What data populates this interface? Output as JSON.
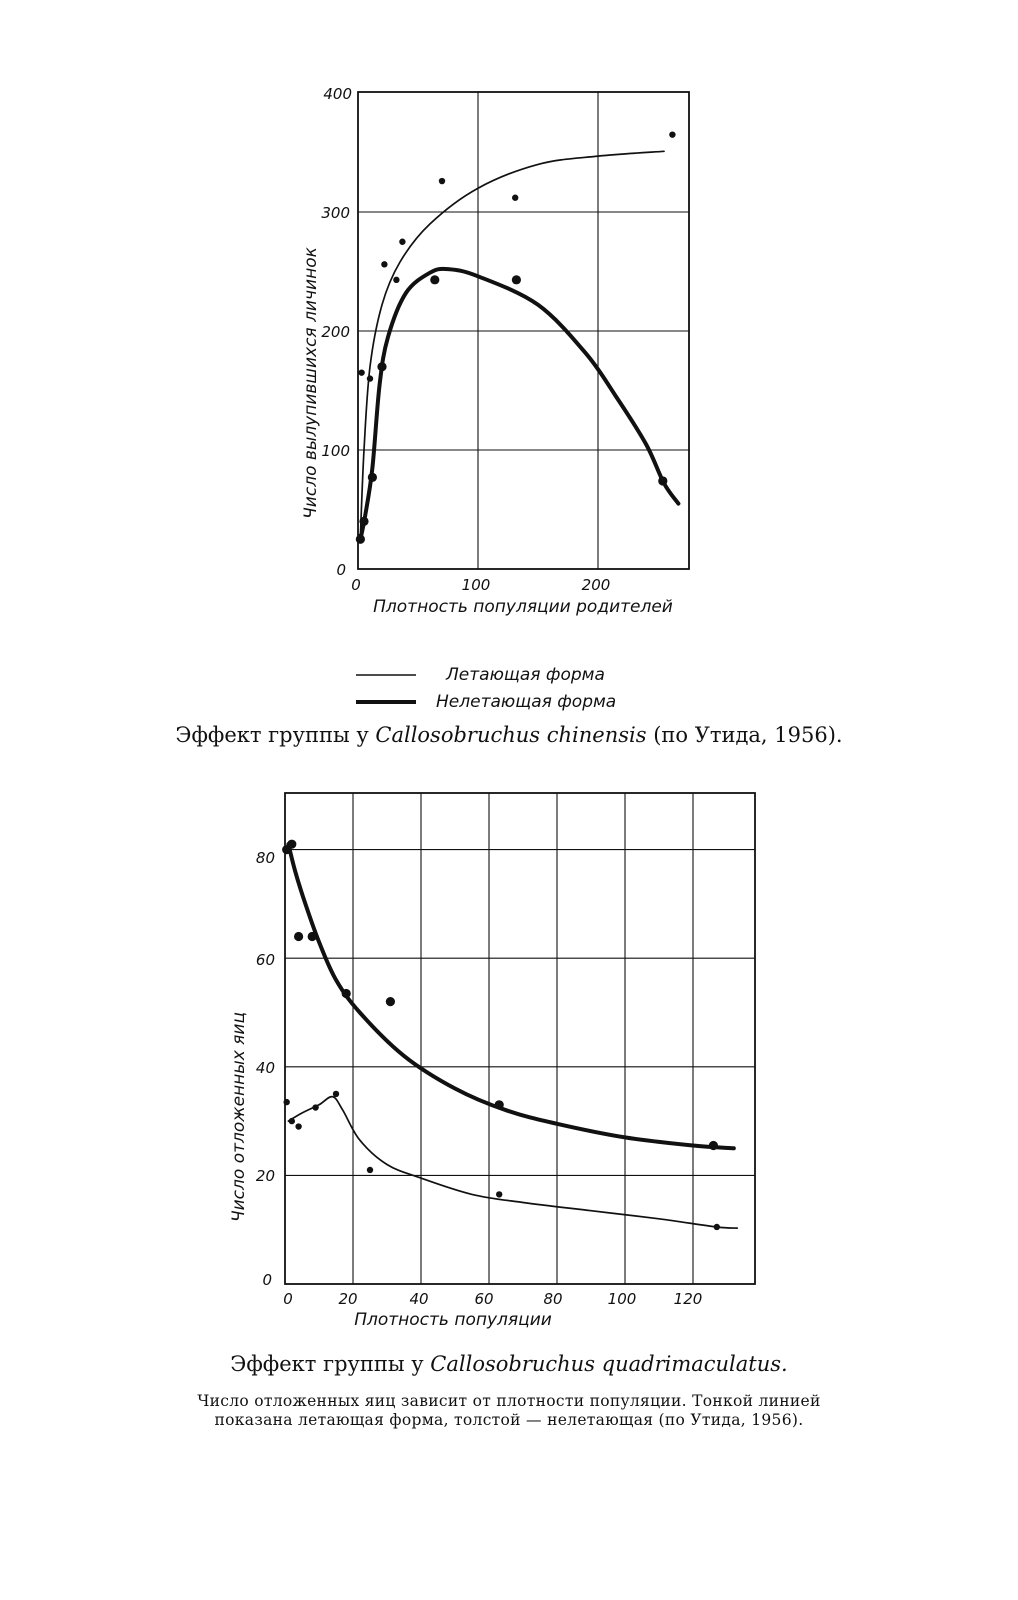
{
  "charts": [
    {
      "caption_prefix": "Эффект группы у",
      "caption_species": "Callosobruchus chinensis",
      "caption_suffix": "(по Утида, 1956).",
      "xlabel": "Плотность популяции родителей",
      "ylabel": "Число вылупившихся личинок",
      "xtick_labels": [
        "0",
        "100",
        "200"
      ],
      "ytick_labels": [
        "0",
        "100",
        "200",
        "300",
        "400"
      ],
      "legend": [
        {
          "label": "Летающая форма",
          "style": "thin"
        },
        {
          "label": "Нелетающая форма",
          "style": "thick"
        }
      ]
    },
    {
      "caption_prefix": "Эффект группы у",
      "caption_species": "Callosobruchus quadrimaculatus.",
      "note_line1": "Число отложенных яиц зависит от плотности популяции. Тонкой линией",
      "note_line2": "показана летающая форма, толстой — нелетающая (по Утида, 1956).",
      "xlabel": "Плотность популяции",
      "ylabel": "Число отложенных яиц",
      "xtick_labels": [
        "0",
        "20",
        "40",
        "60",
        "80",
        "100",
        "120"
      ],
      "ytick_labels": [
        "0",
        "20",
        "40",
        "60",
        "80"
      ]
    }
  ],
  "chart_data": [
    {
      "type": "scatter",
      "xlim": [
        0,
        275
      ],
      "ylim": [
        0,
        400
      ],
      "grid": true,
      "legend_position": "below",
      "series": [
        {
          "name": "Летающая форма",
          "style": "thin",
          "points": [
            [
              2,
              27
            ],
            [
              3,
              165
            ],
            [
              10,
              160
            ],
            [
              22,
              256
            ],
            [
              32,
              243
            ],
            [
              37,
              275
            ],
            [
              70,
              326
            ],
            [
              131,
              312
            ],
            [
              262,
              365
            ]
          ],
          "curve": [
            [
              2,
              28
            ],
            [
              5,
              100
            ],
            [
              10,
              170
            ],
            [
              20,
              222
            ],
            [
              35,
              258
            ],
            [
              60,
              290
            ],
            [
              100,
              320
            ],
            [
              150,
              340
            ],
            [
              200,
              347
            ],
            [
              255,
              351
            ]
          ]
        },
        {
          "name": "Нелетающая форма",
          "style": "thick",
          "points": [
            [
              2,
              25
            ],
            [
              5,
              40
            ],
            [
              12,
              77
            ],
            [
              20,
              170
            ],
            [
              64,
              243
            ],
            [
              132,
              243
            ],
            [
              254,
              74
            ]
          ],
          "curve": [
            [
              2,
              25
            ],
            [
              6,
              45
            ],
            [
              12,
              85
            ],
            [
              18,
              155
            ],
            [
              25,
              195
            ],
            [
              40,
              232
            ],
            [
              60,
              249
            ],
            [
              75,
              252
            ],
            [
              100,
              246
            ],
            [
              150,
              222
            ],
            [
              190,
              181
            ],
            [
              215,
              145
            ],
            [
              240,
              105
            ],
            [
              255,
              72
            ],
            [
              267,
              55
            ]
          ]
        }
      ]
    },
    {
      "type": "scatter",
      "xlim": [
        0,
        138
      ],
      "ylim": [
        0,
        90
      ],
      "grid": true,
      "series": [
        {
          "name": "Летающая форма",
          "style": "thin",
          "points": [
            [
              0.5,
              33.5
            ],
            [
              2,
              30
            ],
            [
              4,
              29
            ],
            [
              9,
              32.5
            ],
            [
              15,
              35
            ],
            [
              25,
              21
            ],
            [
              63,
              16.5
            ],
            [
              127,
              10.5
            ]
          ],
          "curve": [
            [
              1,
              30
            ],
            [
              5,
              31.5
            ],
            [
              10,
              33
            ],
            [
              14,
              34.5
            ],
            [
              17,
              32
            ],
            [
              22,
              26.5
            ],
            [
              30,
              22
            ],
            [
              40,
              19.5
            ],
            [
              55,
              16.5
            ],
            [
              70,
              15
            ],
            [
              90,
              13.5
            ],
            [
              110,
              12
            ],
            [
              127,
              10.5
            ],
            [
              133,
              10.3
            ]
          ]
        },
        {
          "name": "Нелетающая форма",
          "style": "thick",
          "points": [
            [
              0.5,
              80
            ],
            [
              2,
              81
            ],
            [
              4,
              64
            ],
            [
              8,
              64
            ],
            [
              18,
              53.5
            ],
            [
              31,
              52
            ],
            [
              63,
              33
            ],
            [
              126,
              25.5
            ]
          ],
          "curve": [
            [
              1,
              81
            ],
            [
              3,
              76
            ],
            [
              6,
              70
            ],
            [
              10,
              63
            ],
            [
              15,
              56
            ],
            [
              22,
              50
            ],
            [
              35,
              42
            ],
            [
              50,
              36
            ],
            [
              65,
              32
            ],
            [
              80,
              29.5
            ],
            [
              100,
              27
            ],
            [
              120,
              25.5
            ],
            [
              132,
              25
            ]
          ]
        }
      ]
    }
  ]
}
